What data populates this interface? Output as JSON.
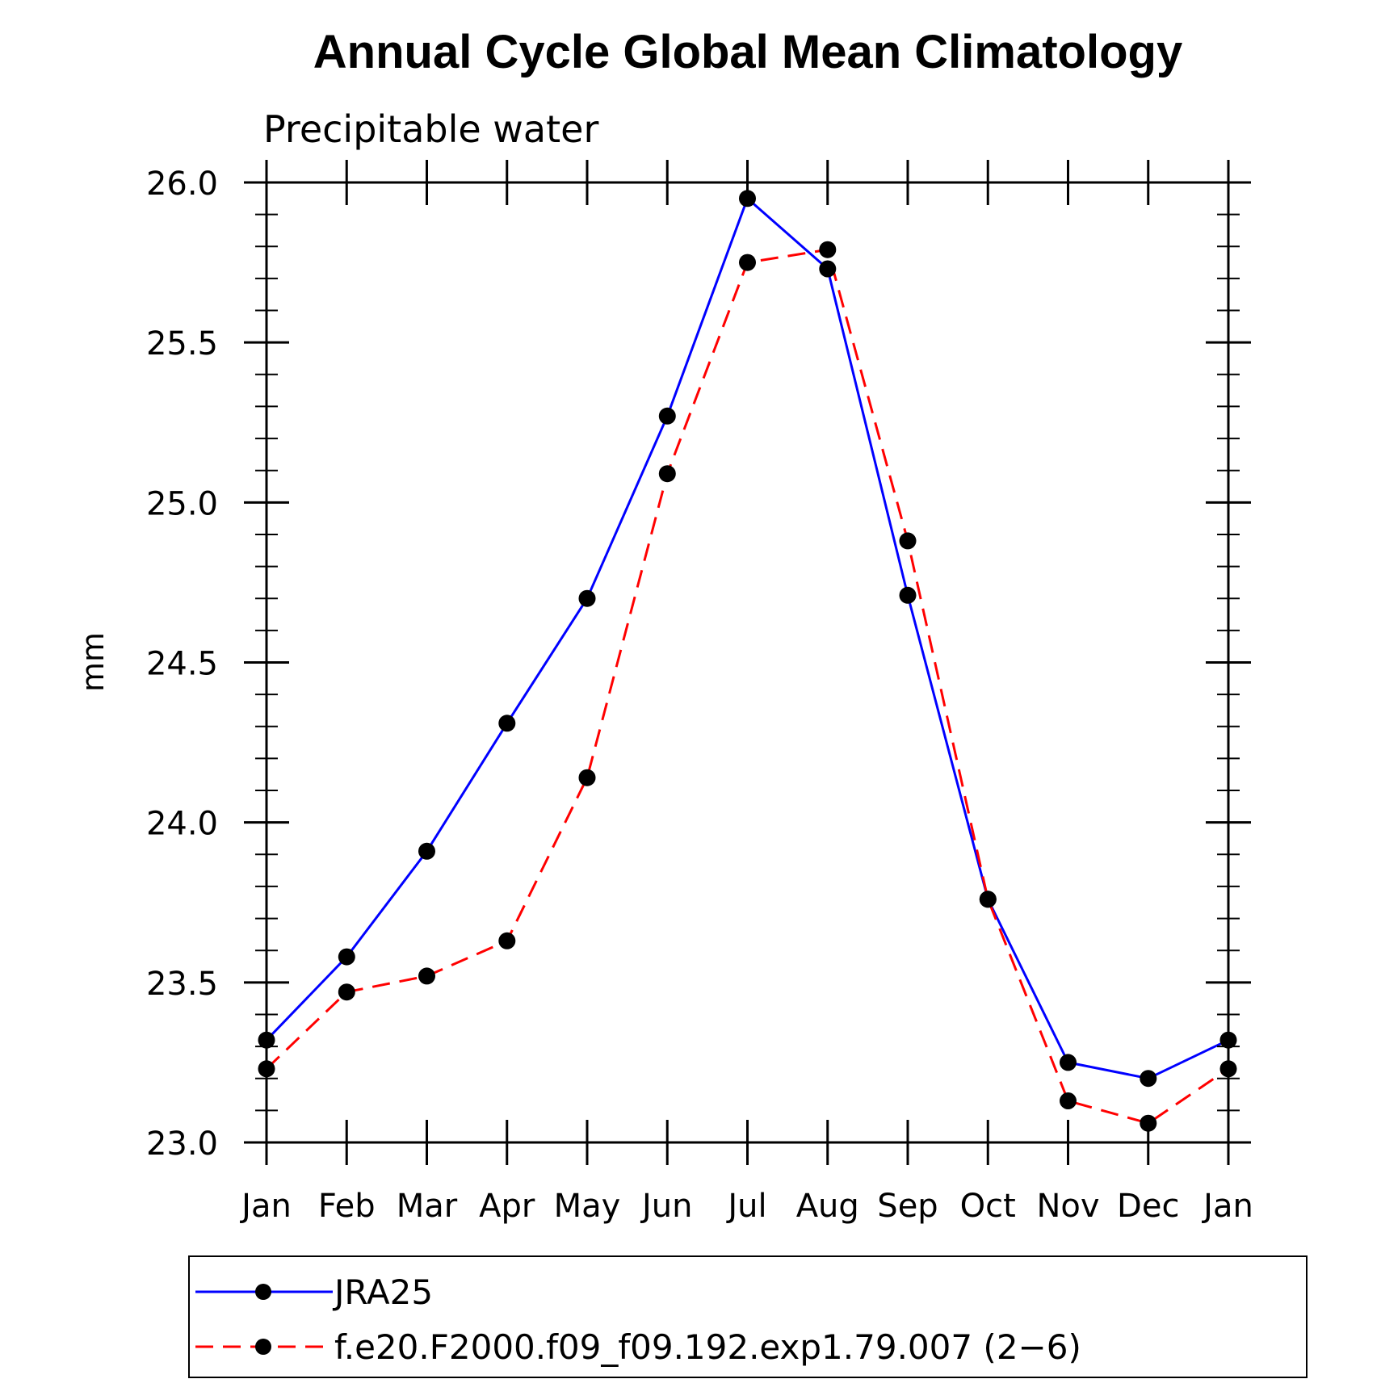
{
  "chart_data": {
    "type": "line",
    "title": "Annual Cycle Global Mean Climatology",
    "subtitle": "Precipitable water",
    "xlabel": "",
    "ylabel": "mm",
    "categories": [
      "Jan",
      "Feb",
      "Mar",
      "Apr",
      "May",
      "Jun",
      "Jul",
      "Aug",
      "Sep",
      "Oct",
      "Nov",
      "Dec",
      "Jan"
    ],
    "ylim": [
      23.0,
      26.0
    ],
    "yticks": [
      "23.0",
      "23.5",
      "24.0",
      "24.5",
      "25.0",
      "25.5",
      "26.0"
    ],
    "grid": false,
    "legend_position": "bottom",
    "series": [
      {
        "name": "JRA25",
        "color": "#0000ff",
        "line_style": "solid",
        "marker": "filled-circle",
        "values": [
          23.32,
          23.58,
          23.91,
          24.31,
          24.7,
          25.27,
          25.95,
          25.73,
          24.71,
          23.76,
          23.25,
          23.2,
          23.32
        ]
      },
      {
        "name": "f.e20.F2000.f09_f09.192.exp1.79.007 (2−6)",
        "color": "#ff0000",
        "line_style": "dashed",
        "marker": "filled-circle",
        "values": [
          23.23,
          23.47,
          23.52,
          23.63,
          24.14,
          25.09,
          25.75,
          25.79,
          24.88,
          23.76,
          23.13,
          23.06,
          23.23
        ]
      }
    ]
  }
}
